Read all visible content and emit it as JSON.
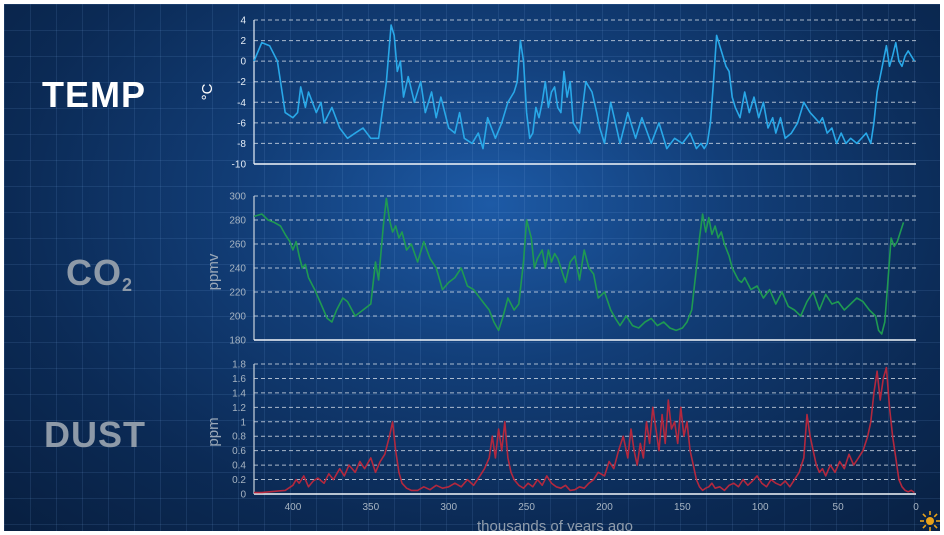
{
  "panel_labels": {
    "temp": "TEMP",
    "co2_main": "CO",
    "co2_sub": "2",
    "dust": "DUST"
  },
  "colors": {
    "temp": "#29a8e8",
    "co2": "#1f9a52",
    "dust": "#b3283e",
    "axis": "#e6eef7",
    "grid": "#dfe6ee",
    "sun": "#e8a21a"
  },
  "icon": "sun-icon",
  "chart_data": [
    {
      "type": "line",
      "title": "",
      "xlabel": "thousands of years ago",
      "ylabel": "°C",
      "xlim": [
        425,
        0
      ],
      "ylim": [
        -10,
        4
      ],
      "yticks": [
        4,
        2,
        0,
        -2,
        -4,
        -6,
        -8,
        -10
      ],
      "grid": true,
      "series": [
        {
          "x": [
            425,
            420,
            415,
            410,
            405,
            400,
            397,
            395,
            392,
            390,
            385,
            382,
            380,
            375,
            370,
            365,
            360,
            355,
            350,
            345,
            340,
            337,
            335,
            333,
            331,
            329,
            326,
            322,
            318,
            315,
            311,
            308,
            305,
            300,
            296,
            293,
            290,
            285,
            281,
            278,
            275,
            270,
            266,
            262,
            258,
            256,
            254,
            252,
            250,
            248,
            246,
            244,
            242,
            240,
            238,
            236,
            234,
            232,
            230,
            228,
            226,
            224,
            222,
            220,
            216,
            212,
            208,
            205,
            203,
            200,
            196,
            193,
            190,
            185,
            180,
            176,
            170,
            165,
            160,
            155,
            150,
            145,
            141,
            138,
            136,
            134,
            132,
            130,
            128,
            125,
            122,
            120,
            118,
            116,
            113,
            110,
            107,
            104,
            101,
            98,
            95,
            92,
            90,
            87,
            84,
            80,
            76,
            72,
            68,
            65,
            62,
            60,
            57,
            54,
            51,
            48,
            45,
            42,
            38,
            35,
            32,
            29,
            27,
            25,
            23,
            21,
            19,
            17,
            15,
            13,
            11,
            9,
            7,
            5,
            3,
            1
          ],
          "y": [
            0,
            1.8,
            1.5,
            0,
            -5,
            -5.5,
            -5,
            -2.5,
            -4.5,
            -3,
            -5,
            -4,
            -6,
            -4.5,
            -6.5,
            -7.5,
            -7,
            -6.5,
            -7.5,
            -7.5,
            -2,
            3.5,
            2.5,
            -1,
            0,
            -3.5,
            -1.5,
            -4,
            -2,
            -5,
            -3,
            -5.5,
            -3.5,
            -6.5,
            -7,
            -5,
            -7.5,
            -8,
            -7,
            -8.5,
            -5.5,
            -7.5,
            -6,
            -4,
            -3,
            -2,
            2,
            0,
            -5,
            -7.5,
            -7,
            -4.5,
            -5.5,
            -4,
            -2,
            -4.5,
            -3,
            -2.5,
            -4.5,
            -5,
            -1,
            -3.5,
            -2,
            -6,
            -7,
            -2,
            -3,
            -5,
            -6.5,
            -8,
            -4,
            -6,
            -8,
            -5,
            -7.5,
            -5.5,
            -8,
            -6,
            -8.5,
            -7.5,
            -8,
            -7,
            -8.5,
            -8,
            -8.5,
            -8,
            -6,
            -2,
            2.5,
            1,
            -0.5,
            -1,
            -3.5,
            -4.5,
            -5.5,
            -3,
            -5,
            -3.5,
            -5.5,
            -4,
            -6.5,
            -5.5,
            -7,
            -5.5,
            -7.5,
            -7,
            -6,
            -4,
            -5,
            -5.5,
            -6,
            -5.5,
            -7,
            -6.5,
            -8,
            -7,
            -8,
            -7.5,
            -8,
            -7.5,
            -7,
            -8,
            -6,
            -3,
            -1.5,
            0,
            1.5,
            -0.5,
            0.5,
            1.8,
            0,
            -0.5,
            0.5,
            1,
            0.5,
            0
          ]
        }
      ]
    },
    {
      "type": "line",
      "title": "",
      "xlabel": "",
      "ylabel": "ppmv",
      "xlim": [
        425,
        0
      ],
      "ylim": [
        180,
        300
      ],
      "yticks": [
        300,
        280,
        260,
        240,
        220,
        200,
        180
      ],
      "grid": true,
      "series": [
        {
          "x": [
            425,
            420,
            416,
            412,
            408,
            405,
            402,
            400,
            398,
            396,
            394,
            392,
            390,
            386,
            382,
            378,
            375,
            372,
            368,
            365,
            360,
            355,
            350,
            347,
            345,
            342,
            340,
            338,
            336,
            334,
            332,
            330,
            327,
            324,
            320,
            316,
            312,
            308,
            304,
            300,
            296,
            292,
            288,
            284,
            280,
            277,
            274,
            271,
            268,
            265,
            262,
            258,
            255,
            252,
            250,
            247,
            245,
            243,
            240,
            238,
            236,
            234,
            232,
            230,
            228,
            225,
            222,
            219,
            216,
            213,
            210,
            207,
            204,
            200,
            196,
            193,
            190,
            186,
            182,
            178,
            174,
            170,
            166,
            162,
            158,
            154,
            150,
            147,
            144,
            141,
            139,
            137,
            135,
            133,
            131,
            129,
            127,
            125,
            123,
            120,
            118,
            116,
            114,
            112,
            110,
            106,
            102,
            98,
            94,
            90,
            86,
            82,
            78,
            74,
            70,
            66,
            62,
            58,
            54,
            50,
            46,
            42,
            38,
            34,
            30,
            26,
            24,
            22,
            20,
            18,
            16,
            14,
            12,
            10,
            8
          ],
          "y": [
            283,
            285,
            280,
            278,
            275,
            268,
            262,
            255,
            262,
            250,
            240,
            243,
            232,
            222,
            210,
            198,
            195,
            205,
            215,
            212,
            200,
            205,
            210,
            245,
            230,
            275,
            298,
            280,
            270,
            275,
            265,
            270,
            255,
            260,
            245,
            262,
            248,
            240,
            222,
            228,
            232,
            240,
            225,
            222,
            215,
            210,
            205,
            195,
            188,
            200,
            215,
            205,
            210,
            245,
            280,
            265,
            240,
            248,
            255,
            240,
            255,
            245,
            252,
            248,
            240,
            228,
            245,
            250,
            230,
            255,
            240,
            235,
            215,
            220,
            205,
            198,
            192,
            200,
            192,
            190,
            195,
            198,
            192,
            195,
            190,
            188,
            190,
            195,
            205,
            240,
            265,
            285,
            270,
            282,
            268,
            275,
            265,
            270,
            260,
            250,
            240,
            235,
            230,
            228,
            232,
            222,
            225,
            215,
            222,
            210,
            220,
            208,
            205,
            200,
            212,
            220,
            205,
            218,
            210,
            212,
            205,
            210,
            215,
            212,
            205,
            200,
            188,
            185,
            195,
            230,
            265,
            258,
            262,
            270,
            278
          ]
        }
      ]
    },
    {
      "type": "line",
      "title": "",
      "xlabel": "thousands of years ago",
      "ylabel": "ppm",
      "xlim": [
        425,
        0
      ],
      "ylim": [
        0,
        1.8
      ],
      "yticks": [
        1.8,
        1.6,
        1.4,
        1.2,
        1,
        0.8,
        0.6,
        0.4,
        0.2,
        0
      ],
      "xticks": [
        400,
        350,
        300,
        250,
        200,
        150,
        100,
        50,
        0
      ],
      "grid": true,
      "series": [
        {
          "x": [
            425,
            420,
            415,
            410,
            405,
            400,
            398,
            396,
            393,
            390,
            387,
            384,
            380,
            377,
            374,
            370,
            367,
            364,
            360,
            357,
            354,
            350,
            347,
            344,
            341,
            338,
            336,
            334,
            332,
            330,
            327,
            324,
            320,
            316,
            312,
            308,
            304,
            300,
            296,
            292,
            288,
            284,
            280,
            277,
            274,
            272,
            270,
            268,
            266,
            264,
            262,
            260,
            258,
            255,
            252,
            249,
            246,
            243,
            240,
            237,
            234,
            231,
            228,
            225,
            222,
            219,
            216,
            213,
            210,
            207,
            204,
            200,
            197,
            194,
            191,
            188,
            185,
            183,
            181,
            179,
            177,
            175,
            173,
            171,
            169,
            167,
            165,
            163,
            161,
            159,
            157,
            155,
            153,
            151,
            149,
            147,
            145,
            143,
            141,
            139,
            137,
            135,
            133,
            131,
            129,
            126,
            123,
            120,
            117,
            114,
            111,
            108,
            105,
            102,
            99,
            96,
            93,
            90,
            87,
            84,
            81,
            78,
            75,
            72,
            70,
            68,
            66,
            64,
            62,
            60,
            58,
            55,
            52,
            49,
            46,
            43,
            40,
            37,
            34,
            31,
            29,
            27,
            25,
            23,
            21,
            19,
            17,
            15,
            13,
            11,
            9,
            7,
            5,
            3,
            1
          ],
          "y": [
            0.02,
            0.02,
            0.03,
            0.04,
            0.05,
            0.12,
            0.2,
            0.15,
            0.25,
            0.1,
            0.18,
            0.22,
            0.15,
            0.28,
            0.2,
            0.35,
            0.25,
            0.4,
            0.3,
            0.45,
            0.35,
            0.5,
            0.3,
            0.45,
            0.55,
            0.8,
            1.0,
            0.6,
            0.3,
            0.15,
            0.08,
            0.05,
            0.05,
            0.1,
            0.06,
            0.12,
            0.08,
            0.1,
            0.15,
            0.1,
            0.2,
            0.12,
            0.25,
            0.35,
            0.5,
            0.8,
            0.5,
            0.9,
            0.6,
            1.0,
            0.5,
            0.3,
            0.2,
            0.12,
            0.08,
            0.15,
            0.1,
            0.2,
            0.12,
            0.25,
            0.15,
            0.1,
            0.08,
            0.12,
            0.05,
            0.06,
            0.1,
            0.08,
            0.15,
            0.2,
            0.3,
            0.25,
            0.45,
            0.35,
            0.6,
            0.8,
            0.5,
            0.9,
            0.6,
            0.4,
            0.7,
            0.5,
            1.0,
            0.7,
            1.2,
            0.9,
            0.6,
            1.1,
            0.7,
            1.3,
            0.9,
            1.0,
            0.7,
            1.2,
            0.8,
            1.0,
            0.6,
            0.4,
            0.2,
            0.1,
            0.05,
            0.08,
            0.1,
            0.15,
            0.08,
            0.1,
            0.05,
            0.12,
            0.15,
            0.1,
            0.2,
            0.12,
            0.18,
            0.25,
            0.15,
            0.1,
            0.2,
            0.15,
            0.12,
            0.18,
            0.1,
            0.2,
            0.3,
            0.5,
            1.1,
            0.8,
            0.6,
            0.4,
            0.3,
            0.35,
            0.25,
            0.4,
            0.3,
            0.45,
            0.35,
            0.55,
            0.4,
            0.5,
            0.6,
            0.8,
            1.0,
            1.4,
            1.7,
            1.3,
            1.6,
            1.75,
            1.2,
            0.8,
            0.5,
            0.2,
            0.1,
            0.05,
            0.03,
            0.05,
            0.02
          ]
        }
      ]
    }
  ]
}
